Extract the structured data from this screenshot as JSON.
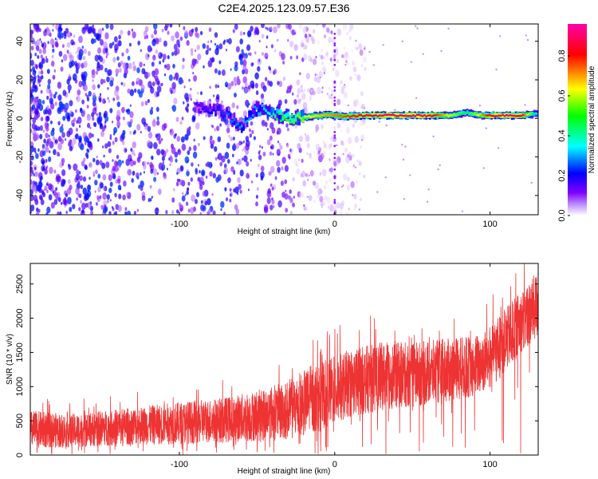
{
  "figure": {
    "title": "C2E4.2025.123.09.57.E36"
  },
  "chart_data": [
    {
      "type": "heatmap",
      "xlabel": "Height of straight line (km)",
      "ylabel": "Frequency (Hz)",
      "xlim": [
        -196,
        131
      ],
      "ylim": [
        -50,
        49
      ],
      "x_ticks": [
        -100,
        0,
        100
      ],
      "y_ticks": [
        -40,
        -20,
        0,
        20,
        40
      ],
      "colorbar": {
        "label": "Normalized spectral amplitude",
        "range": [
          0,
          0.96
        ],
        "ticks": [
          0.0,
          0.2,
          0.4,
          0.6,
          0.8
        ],
        "colormap": [
          "#ffffff",
          "#7f00ff",
          "#0000ff",
          "#00ffff",
          "#00ff00",
          "#ffff00",
          "#ff0000",
          "#ff00aa"
        ]
      },
      "ridge": {
        "x": [
          -90,
          -80,
          -70,
          -60,
          -50,
          -42,
          -35,
          -25,
          -15,
          -5,
          5,
          20,
          40,
          60,
          75,
          85,
          95,
          100,
          110,
          120,
          131
        ],
        "frequency": [
          6,
          5,
          2,
          -4,
          5,
          3,
          1,
          0,
          1,
          2,
          1,
          1.5,
          1.5,
          1.5,
          1.5,
          3,
          1.5,
          1.5,
          1.5,
          1.5,
          2.5
        ],
        "amplitude": [
          0.15,
          0.2,
          0.25,
          0.3,
          0.3,
          0.35,
          0.5,
          0.55,
          0.65,
          0.7,
          0.75,
          0.85,
          0.9,
          0.88,
          0.6,
          0.45,
          0.7,
          0.85,
          0.9,
          0.85,
          0.3
        ]
      },
      "noise": {
        "x_range": [
          -196,
          -20
        ],
        "description_amplitude": [
          0.05,
          0.25
        ]
      }
    },
    {
      "type": "line",
      "xlabel": "Height of straight line (km)",
      "ylabel": "SNR (10 * v/v)",
      "xlim": [
        -196,
        131
      ],
      "ylim": [
        0,
        2800
      ],
      "x_ticks": [
        -100,
        0,
        100
      ],
      "y_ticks": [
        0,
        500,
        1000,
        1500,
        2000,
        2500
      ],
      "series": [
        {
          "color": "#ee3333",
          "envelope_x": [
            -196,
            -170,
            -150,
            -130,
            -110,
            -90,
            -70,
            -50,
            -30,
            -15,
            0,
            10,
            30,
            50,
            70,
            90,
            100,
            110,
            120,
            131
          ],
          "lower": [
            100,
            110,
            130,
            150,
            150,
            170,
            180,
            200,
            220,
            300,
            450,
            550,
            650,
            700,
            750,
            850,
            950,
            1200,
            1500,
            1700
          ],
          "upper": [
            650,
            600,
            650,
            700,
            750,
            800,
            850,
            950,
            1100,
            1300,
            1450,
            1550,
            1650,
            1650,
            1700,
            1750,
            1900,
            2150,
            2400,
            2700
          ]
        }
      ]
    }
  ]
}
